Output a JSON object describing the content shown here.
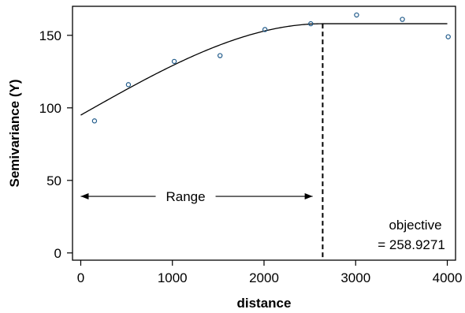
{
  "chart_data": {
    "type": "scatter",
    "xlabel": "distance",
    "ylabel": "Semivariance (Y)",
    "xlim": [
      -90,
      4090
    ],
    "ylim": [
      -5,
      170
    ],
    "x_ticks": [
      0,
      1000,
      2000,
      3000,
      4000
    ],
    "y_ticks": [
      0,
      50,
      100,
      150
    ],
    "grid": false,
    "legend": "none",
    "points": {
      "x": [
        150,
        520,
        1020,
        1520,
        2010,
        2510,
        3010,
        3510,
        4010
      ],
      "y": [
        91,
        116,
        132,
        136,
        154,
        158,
        164,
        161,
        149
      ]
    },
    "fitted_curve": {
      "range": 2640,
      "sill": 158,
      "nugget": 95,
      "x_start": 0,
      "x_end": 4000
    },
    "range_marker_x": 2640,
    "range_arrow": {
      "label": "Range",
      "x_from": 0,
      "x_to": 2530,
      "y": 39
    },
    "annotation": {
      "line1": "objective",
      "line2": "= 258.9271"
    },
    "colors": {
      "points": "#1f5a8a",
      "curve": "#000000"
    }
  }
}
